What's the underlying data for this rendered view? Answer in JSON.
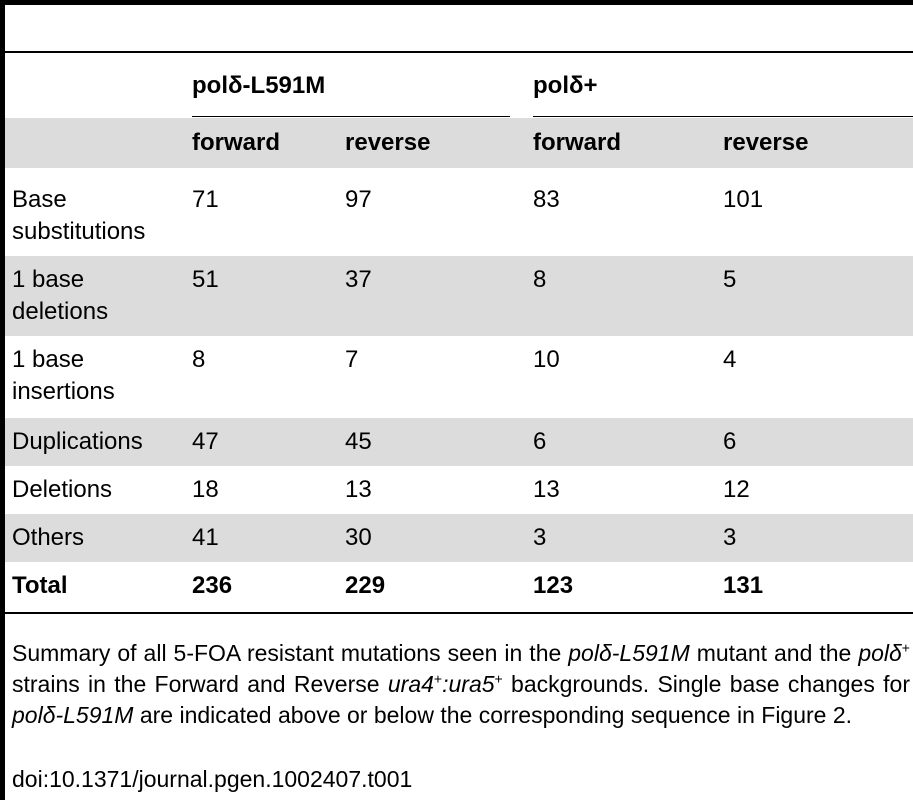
{
  "table": {
    "groups": [
      "polδ-L591M",
      "polδ+"
    ],
    "subheaders": [
      "forward",
      "reverse",
      "forward",
      "reverse"
    ],
    "rows": [
      {
        "label_lines": [
          "Base",
          "substitutions"
        ],
        "values": [
          "71",
          "97",
          "83",
          "101"
        ],
        "shaded": false
      },
      {
        "label_lines": [
          "1 base",
          "deletions"
        ],
        "values": [
          "51",
          "37",
          "8",
          "5"
        ],
        "shaded": true
      },
      {
        "label_lines": [
          "1 base",
          "insertions"
        ],
        "values": [
          "8",
          "7",
          "10",
          "4"
        ],
        "shaded": false
      },
      {
        "label_lines": [
          "Duplications"
        ],
        "values": [
          "47",
          "45",
          "6",
          "6"
        ],
        "shaded": true
      },
      {
        "label_lines": [
          "Deletions"
        ],
        "values": [
          "18",
          "13",
          "13",
          "12"
        ],
        "shaded": false
      },
      {
        "label_lines": [
          "Others"
        ],
        "values": [
          "41",
          "30",
          "3",
          "3"
        ],
        "shaded": true
      }
    ],
    "total": {
      "label": "Total",
      "values": [
        "236",
        "229",
        "123",
        "131"
      ]
    }
  },
  "caption": {
    "t1": "Summary of all 5-FOA resistant mutations seen in the ",
    "i1": "polδ-L591M",
    "t2": " mutant and the ",
    "i2": "polδ",
    "sup1": "+",
    "t3": " strains in the Forward and Reverse ",
    "i3": "ura4",
    "sup2": "+",
    "i4": ":ura5",
    "sup3": "+",
    "t4": " backgrounds. Single base changes for ",
    "i5": "polδ-L591M",
    "t5": " are indicated above or below the corresponding sequence in Figure 2."
  },
  "doi": "doi:10.1371/journal.pgen.1002407.t001",
  "colors": {
    "shaded_row": "#dcdcdc",
    "rule": "#000000"
  }
}
